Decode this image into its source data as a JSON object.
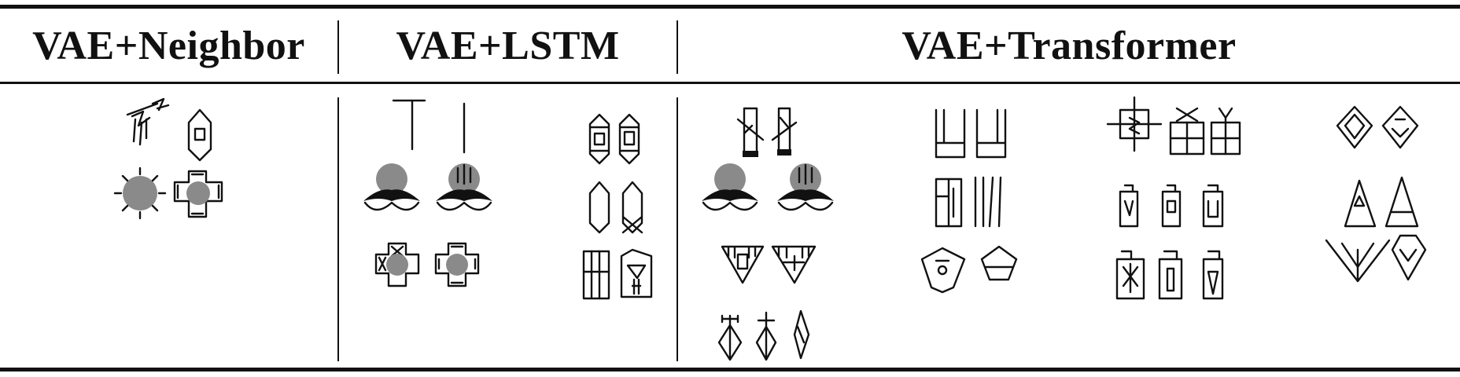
{
  "table": {
    "columns": [
      {
        "label": "VAE+Neighbor"
      },
      {
        "label": "VAE+LSTM"
      },
      {
        "label": "VAE+Transformer"
      }
    ]
  },
  "figure": {
    "fill_color": "#8a8a8a",
    "stroke_color": "#111111"
  }
}
